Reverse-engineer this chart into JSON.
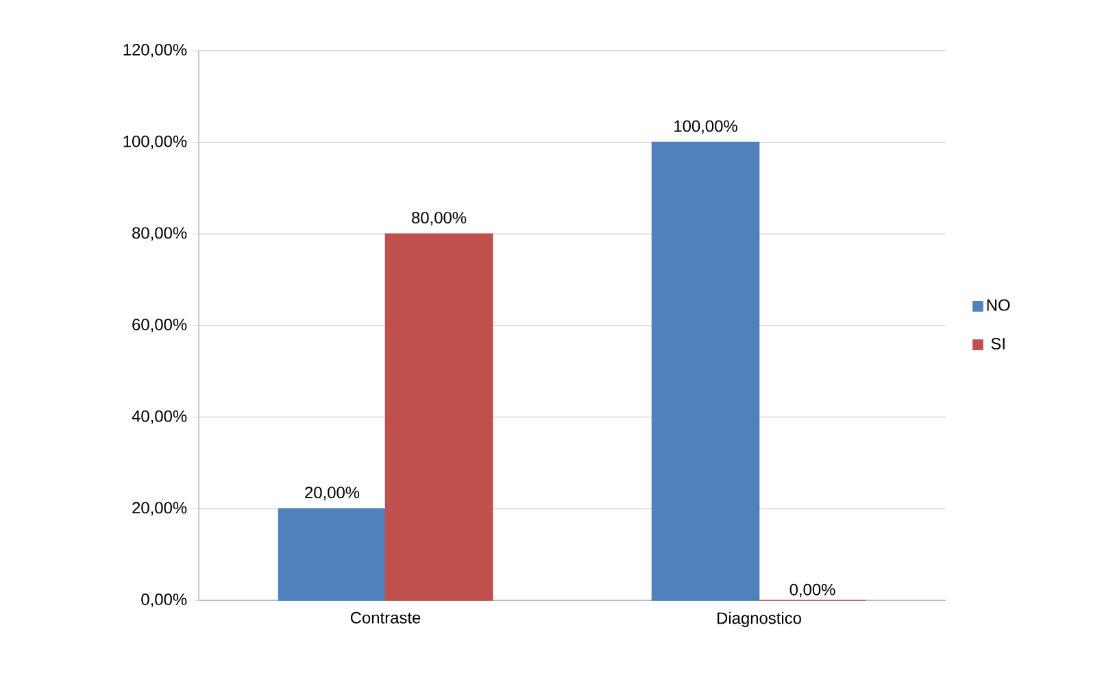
{
  "chart_data": {
    "type": "bar",
    "categories": [
      "Contraste",
      "Diagnostico"
    ],
    "series": [
      {
        "name": "NO",
        "color": "#4f81bd",
        "values": [
          20,
          100
        ],
        "value_labels": [
          "20,00%",
          "100,00%"
        ]
      },
      {
        "name": "SI",
        "color": "#c0504d",
        "values": [
          80,
          0
        ],
        "value_labels": [
          "80,00%",
          "0,00%"
        ]
      }
    ],
    "ylim": [
      0,
      120
    ],
    "yticks": [
      {
        "value": 0,
        "label": "0,00%"
      },
      {
        "value": 20,
        "label": "20,00%"
      },
      {
        "value": 40,
        "label": "40,00%"
      },
      {
        "value": 60,
        "label": "60,00%"
      },
      {
        "value": 80,
        "label": "80,00%"
      },
      {
        "value": 100,
        "label": "100,00%"
      },
      {
        "value": 120,
        "label": "120,00%"
      }
    ],
    "grid": "y",
    "legend": "right"
  }
}
